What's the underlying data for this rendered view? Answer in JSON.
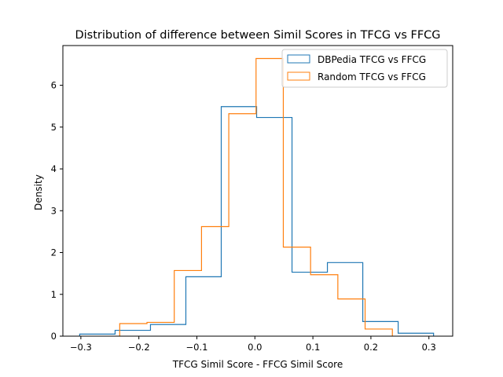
{
  "chart_data": {
    "type": "histogram-step",
    "title": "Distribution of difference between Simil Scores in TFCG vs FFCG",
    "xlabel": "TFCG Simil Score - FFCG Simil Score",
    "ylabel": "Density",
    "xlim": [
      -0.331,
      0.341
    ],
    "ylim": [
      0,
      6.95
    ],
    "xticks": [
      -0.3,
      -0.2,
      -0.1,
      0.0,
      0.1,
      0.2,
      0.3
    ],
    "xtick_labels": [
      "−0.3",
      "−0.2",
      "−0.1",
      "0.0",
      "0.1",
      "0.2",
      "0.3"
    ],
    "yticks": [
      0,
      1,
      2,
      3,
      4,
      5,
      6
    ],
    "ytick_labels": [
      "0",
      "1",
      "2",
      "3",
      "4",
      "5",
      "6"
    ],
    "grid": false,
    "legend_position": "top-right",
    "series": [
      {
        "name": "DBPedia TFCG vs FFCG",
        "color": "#1f77b4",
        "bin_edges": [
          -0.302,
          -0.241,
          -0.18,
          -0.119,
          -0.058,
          0.003,
          0.064,
          0.125,
          0.186,
          0.247,
          0.308
        ],
        "values": [
          0.05,
          0.14,
          0.28,
          1.42,
          5.49,
          5.23,
          1.53,
          1.76,
          0.35,
          0.07
        ]
      },
      {
        "name": "Random TFCG vs FFCG",
        "color": "#ff7f0e",
        "bin_edges": [
          -0.233,
          -0.186,
          -0.139,
          -0.092,
          -0.045,
          0.002,
          0.049,
          0.096,
          0.143,
          0.19,
          0.237
        ],
        "values": [
          0.3,
          0.33,
          1.57,
          2.62,
          5.32,
          6.64,
          2.13,
          1.47,
          0.89,
          0.17
        ]
      }
    ]
  }
}
